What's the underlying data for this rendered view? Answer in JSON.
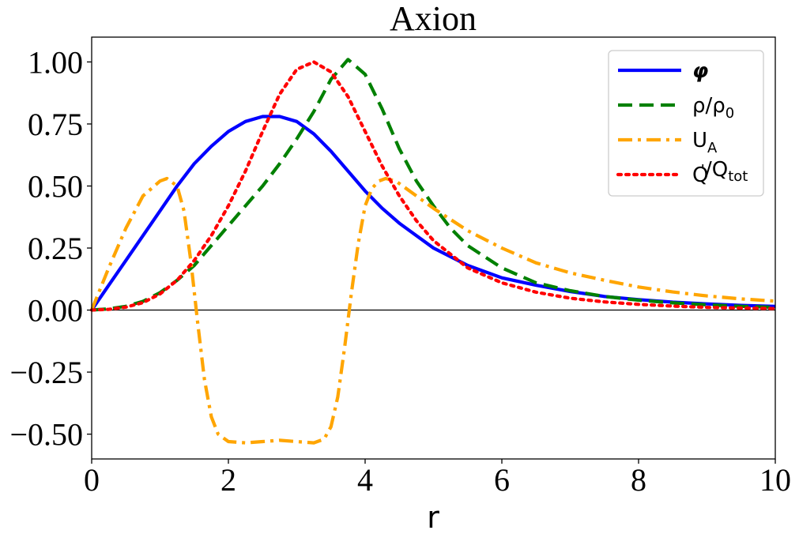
{
  "chart_data": {
    "type": "line",
    "title": "Axion",
    "xlabel": "r",
    "ylabel": "",
    "xlim": [
      0,
      10
    ],
    "ylim": [
      -0.6,
      1.1
    ],
    "xticks": [
      0,
      2,
      4,
      6,
      8,
      10
    ],
    "xtick_labels": [
      "0",
      "2",
      "4",
      "6",
      "8",
      "10"
    ],
    "yticks": [
      1.0,
      0.75,
      0.5,
      0.25,
      0.0,
      -0.25,
      -0.5
    ],
    "ytick_labels": [
      "1.00",
      "0.75",
      "0.50",
      "0.25",
      "0.00",
      "−0.25",
      "−0.50"
    ],
    "grid": false,
    "legend_position": "top-right",
    "zero_line": true,
    "series": [
      {
        "name": "φ",
        "legend_main": "φ",
        "legend_sub": "",
        "legend_sup": "",
        "legend_tail": "",
        "color": "#0000ff",
        "dash": "solid",
        "x": [
          0,
          0.25,
          0.5,
          0.75,
          1.0,
          1.25,
          1.5,
          1.75,
          2.0,
          2.25,
          2.5,
          2.75,
          3.0,
          3.25,
          3.5,
          3.75,
          4.0,
          4.25,
          4.5,
          4.75,
          5.0,
          5.5,
          6.0,
          6.5,
          7.0,
          7.5,
          8.0,
          8.5,
          9.0,
          9.5,
          10.0
        ],
        "y": [
          0,
          0.1,
          0.2,
          0.3,
          0.4,
          0.5,
          0.59,
          0.66,
          0.72,
          0.76,
          0.78,
          0.78,
          0.76,
          0.71,
          0.64,
          0.56,
          0.48,
          0.41,
          0.35,
          0.3,
          0.25,
          0.18,
          0.13,
          0.1,
          0.075,
          0.055,
          0.042,
          0.032,
          0.025,
          0.019,
          0.015
        ]
      },
      {
        "name": "ρ/ρ0",
        "legend_main": "ρ/ρ",
        "legend_sub": "0",
        "legend_sup": "",
        "legend_tail": "",
        "color": "#008000",
        "dash": "dashed",
        "x": [
          0,
          0.25,
          0.5,
          0.75,
          1.0,
          1.25,
          1.5,
          1.75,
          2.0,
          2.25,
          2.5,
          2.75,
          3.0,
          3.25,
          3.5,
          3.75,
          4.0,
          4.25,
          4.5,
          4.75,
          5.0,
          5.25,
          5.5,
          6.0,
          6.5,
          7.0,
          7.5,
          8.0,
          8.5,
          9.0,
          9.5,
          10.0
        ],
        "y": [
          0,
          0.005,
          0.015,
          0.035,
          0.07,
          0.12,
          0.18,
          0.26,
          0.34,
          0.42,
          0.5,
          0.59,
          0.69,
          0.8,
          0.93,
          1.01,
          0.95,
          0.81,
          0.65,
          0.52,
          0.42,
          0.33,
          0.26,
          0.17,
          0.11,
          0.078,
          0.055,
          0.04,
          0.029,
          0.021,
          0.015,
          0.011
        ]
      },
      {
        "name": "UA",
        "legend_main": "U",
        "legend_sub": "A",
        "legend_sup": "",
        "legend_tail": "",
        "color": "#ffa500",
        "dash": "dashdot",
        "x": [
          0,
          0.25,
          0.5,
          0.75,
          1.0,
          1.1,
          1.25,
          1.35,
          1.45,
          1.55,
          1.65,
          1.75,
          1.85,
          2.0,
          2.25,
          2.5,
          2.75,
          3.0,
          3.25,
          3.4,
          3.5,
          3.6,
          3.7,
          3.8,
          3.9,
          4.0,
          4.1,
          4.2,
          4.3,
          4.45,
          4.75,
          5.0,
          5.5,
          6.0,
          6.5,
          7.0,
          7.5,
          8.0,
          8.5,
          9.0,
          9.5,
          10.0
        ],
        "y": [
          0,
          0.17,
          0.33,
          0.46,
          0.52,
          0.53,
          0.5,
          0.4,
          0.2,
          -0.05,
          -0.28,
          -0.43,
          -0.5,
          -0.53,
          -0.535,
          -0.53,
          -0.525,
          -0.53,
          -0.535,
          -0.52,
          -0.47,
          -0.35,
          -0.15,
          0.07,
          0.27,
          0.42,
          0.49,
          0.52,
          0.53,
          0.52,
          0.46,
          0.41,
          0.32,
          0.25,
          0.19,
          0.15,
          0.12,
          0.093,
          0.073,
          0.057,
          0.045,
          0.036
        ]
      },
      {
        "name": "Q'/Qtot",
        "legend_main": "Q",
        "legend_sub": "",
        "legend_sup": "'",
        "legend_tail": "/Q",
        "legend_tail_sub": "tot",
        "color": "#ff0000",
        "dash": "dotted",
        "x": [
          0,
          0.25,
          0.5,
          0.75,
          1.0,
          1.25,
          1.5,
          1.75,
          2.0,
          2.25,
          2.5,
          2.75,
          3.0,
          3.25,
          3.5,
          3.75,
          4.0,
          4.25,
          4.5,
          4.75,
          5.0,
          5.5,
          6.0,
          6.5,
          7.0,
          7.5,
          8.0,
          8.5,
          9.0,
          9.5,
          10.0
        ],
        "y": [
          0,
          0.003,
          0.012,
          0.03,
          0.065,
          0.12,
          0.2,
          0.3,
          0.42,
          0.56,
          0.72,
          0.87,
          0.97,
          1.0,
          0.96,
          0.86,
          0.72,
          0.58,
          0.46,
          0.36,
          0.28,
          0.17,
          0.11,
          0.072,
          0.048,
          0.033,
          0.023,
          0.016,
          0.011,
          0.008,
          0.006
        ]
      }
    ]
  }
}
